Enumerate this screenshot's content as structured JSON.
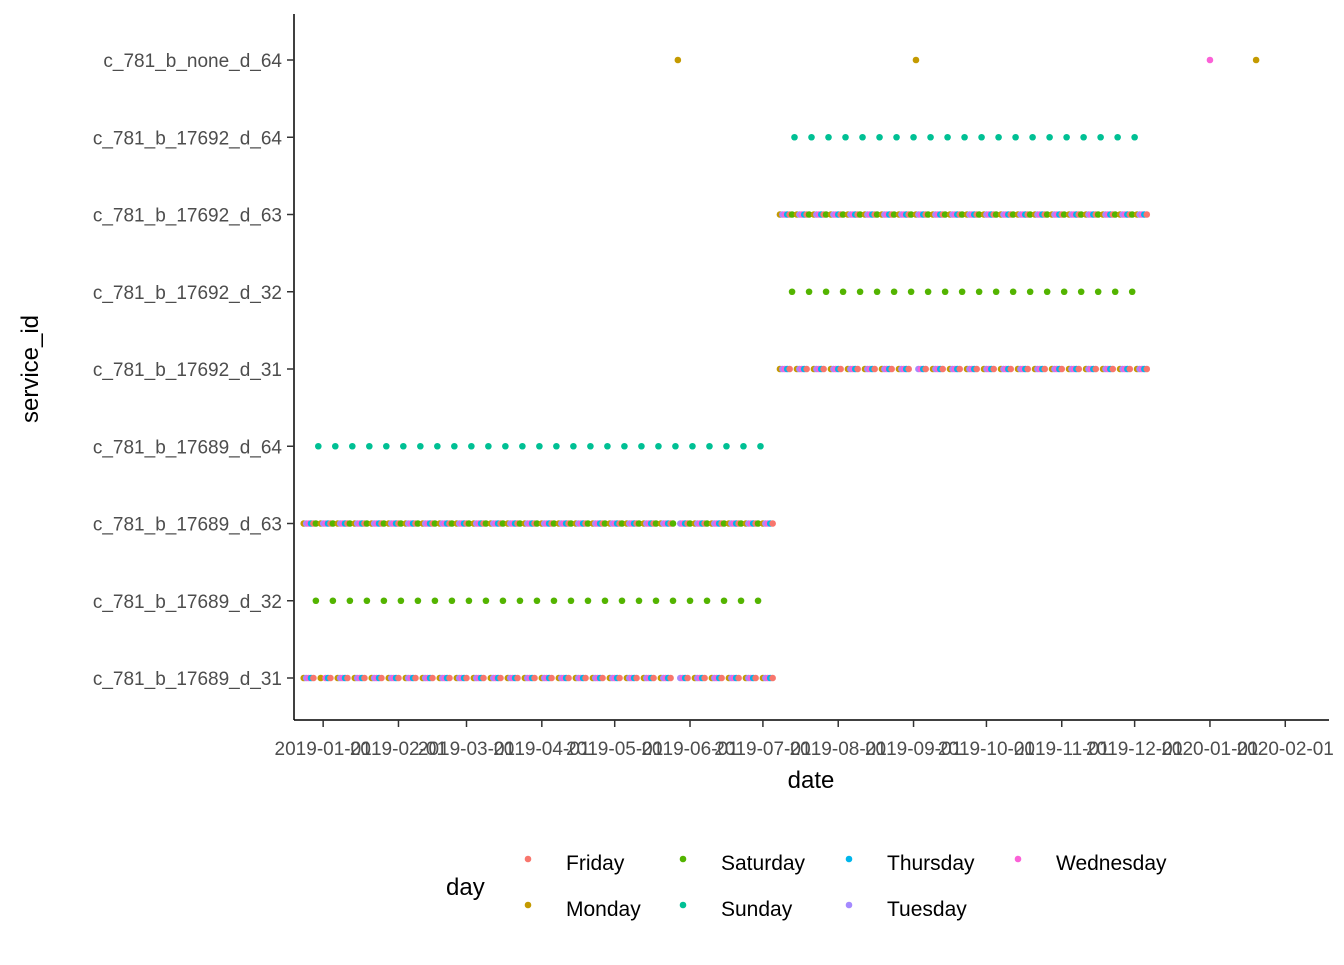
{
  "chart_data": {
    "type": "scatter",
    "xlabel": "date",
    "ylabel": "service_id",
    "xlim": [
      "2018-12-20",
      "2020-02-19"
    ],
    "x_ticks": [
      "2019-01-01",
      "2019-02-01",
      "2019-03-01",
      "2019-04-01",
      "2019-05-01",
      "2019-06-01",
      "2019-07-01",
      "2019-08-01",
      "2019-09-01",
      "2019-10-01",
      "2019-11-01",
      "2019-12-01",
      "2020-01-01",
      "2020-02-01"
    ],
    "x_tick_labels": [
      "2019-01-01",
      "2019-02-01",
      "2019-03-01",
      "2019-04-01",
      "2019-05-01",
      "2019-06-01",
      "2019-07-01",
      "2019-08-01",
      "2019-09-01",
      "2019-10-01",
      "2019-11-01",
      "2019-12-01",
      "2020-01-01",
      "2020-02-01"
    ],
    "categories": [
      "c_781_b_17689_d_31",
      "c_781_b_17689_d_32",
      "c_781_b_17689_d_63",
      "c_781_b_17689_d_64",
      "c_781_b_17692_d_31",
      "c_781_b_17692_d_32",
      "c_781_b_17692_d_63",
      "c_781_b_17692_d_64",
      "c_781_b_none_d_64"
    ],
    "grid": false,
    "legend": {
      "title": "day",
      "position": "bottom",
      "entries": [
        {
          "name": "Friday",
          "color": "#F8766D"
        },
        {
          "name": "Monday",
          "color": "#C49A00"
        },
        {
          "name": "Saturday",
          "color": "#53B400"
        },
        {
          "name": "Sunday",
          "color": "#00C094"
        },
        {
          "name": "Thursday",
          "color": "#00B6EB"
        },
        {
          "name": "Tuesday",
          "color": "#A58AFF"
        },
        {
          "name": "Wednesday",
          "color": "#FB61D7"
        }
      ]
    },
    "series_rules": [
      {
        "service_id": "c_781_b_17689_d_31",
        "weekdays": [
          "Monday",
          "Tuesday",
          "Wednesday",
          "Thursday",
          "Friday"
        ],
        "start": "2018-12-24",
        "end": "2019-07-05",
        "gaps": [
          "2019-01-01",
          "2019-05-27"
        ]
      },
      {
        "service_id": "c_781_b_17689_d_32",
        "weekdays": [
          "Saturday"
        ],
        "start": "2018-12-29",
        "end": "2019-06-29"
      },
      {
        "service_id": "c_781_b_17689_d_63",
        "weekdays": [
          "Monday",
          "Tuesday",
          "Wednesday",
          "Thursday",
          "Friday",
          "Saturday"
        ],
        "start": "2018-12-24",
        "end": "2019-07-05",
        "gaps": [
          "2019-05-27"
        ]
      },
      {
        "service_id": "c_781_b_17689_d_64",
        "weekdays": [
          "Sunday"
        ],
        "start": "2018-12-30",
        "end": "2019-06-30"
      },
      {
        "service_id": "c_781_b_17692_d_31",
        "weekdays": [
          "Monday",
          "Tuesday",
          "Wednesday",
          "Thursday",
          "Friday"
        ],
        "start": "2019-07-08",
        "end": "2019-12-06",
        "gaps": [
          "2019-09-02"
        ]
      },
      {
        "service_id": "c_781_b_17692_d_32",
        "weekdays": [
          "Saturday"
        ],
        "start": "2019-07-13",
        "end": "2019-11-30"
      },
      {
        "service_id": "c_781_b_17692_d_63",
        "weekdays": [
          "Monday",
          "Tuesday",
          "Wednesday",
          "Thursday",
          "Friday",
          "Saturday"
        ],
        "start": "2019-07-08",
        "end": "2019-12-06"
      },
      {
        "service_id": "c_781_b_17692_d_64",
        "weekdays": [
          "Sunday"
        ],
        "start": "2019-07-14",
        "end": "2019-12-01"
      },
      {
        "service_id": "c_781_b_none_d_64",
        "dates": [
          "2019-05-27",
          "2019-09-02",
          "2020-01-01",
          "2020-01-20"
        ]
      }
    ]
  }
}
